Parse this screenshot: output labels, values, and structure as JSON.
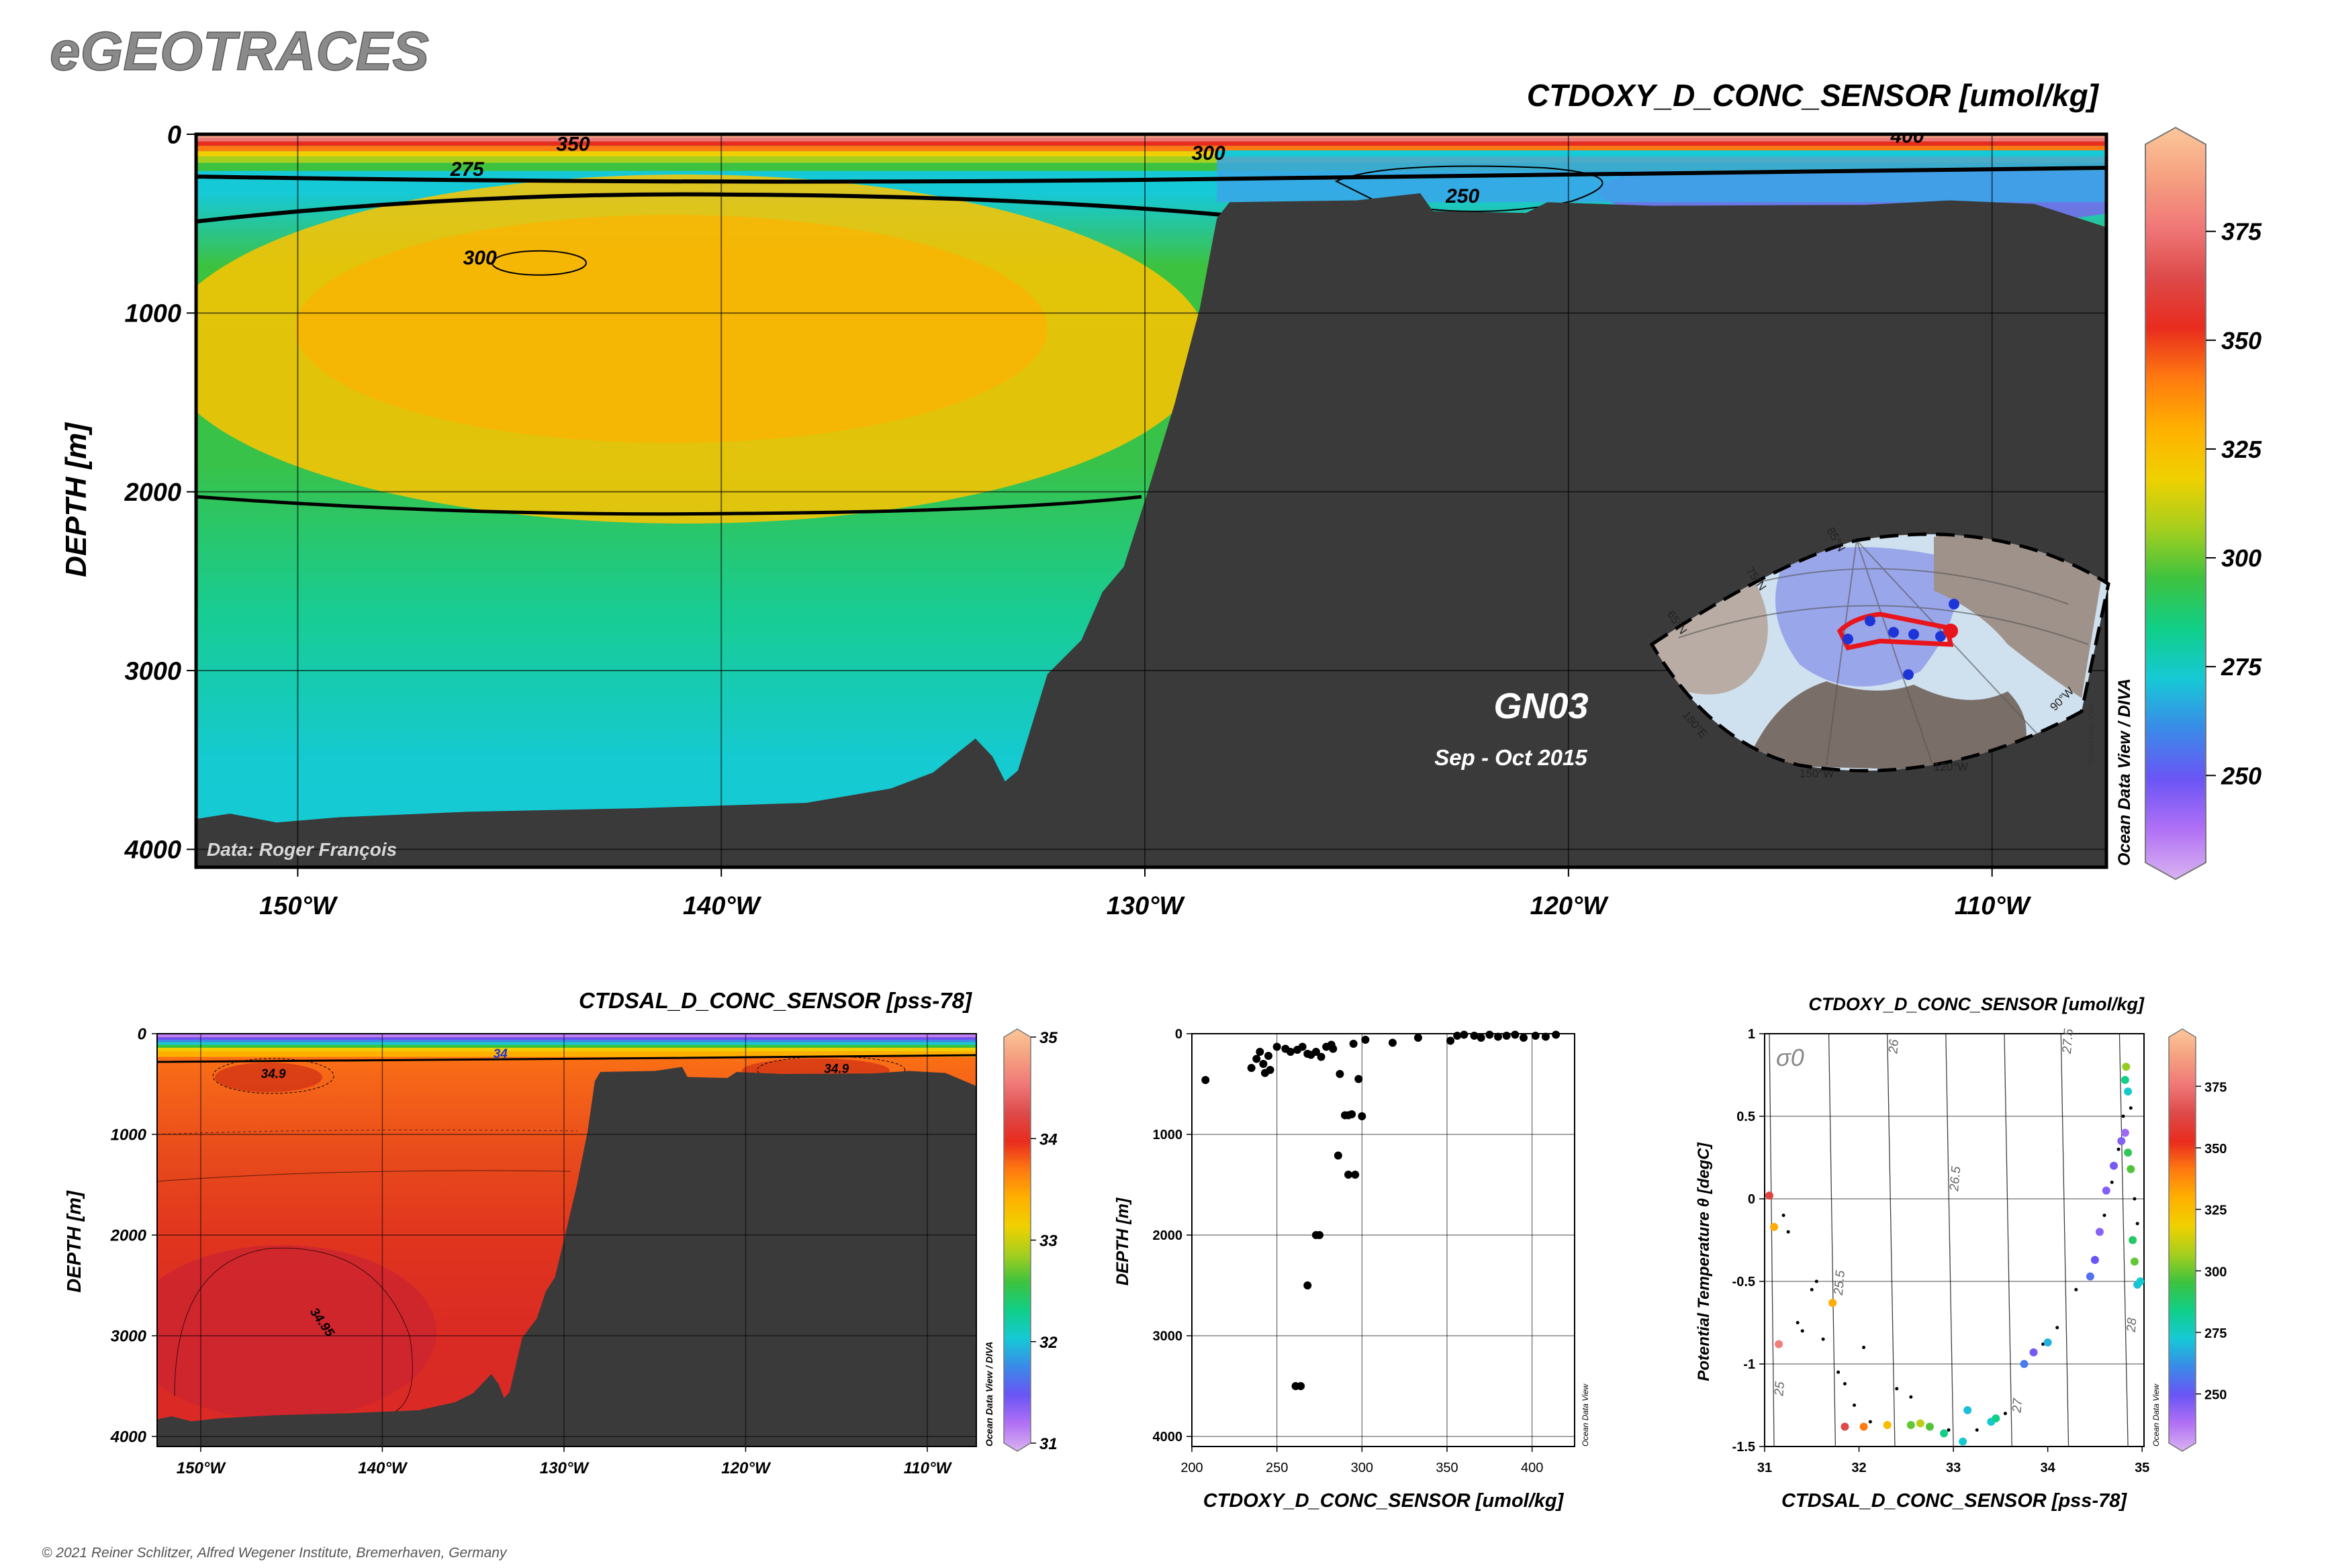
{
  "brand": "eGEOTRACES",
  "copyright": "© 2021 Reiner Schlitzer, Alfred Wegener Institute, Bremerhaven, Germany",
  "colormaps": {
    "odv": [
      "#d9b3f0",
      "#b070f5",
      "#6a55f5",
      "#3a8ae8",
      "#16c9d6",
      "#10cf88",
      "#3dc23f",
      "#a6cf1e",
      "#f0d000",
      "#ffb000",
      "#ff7a10",
      "#e82c1e",
      "#dd4a4a",
      "#f07777",
      "#f5a080",
      "#fcc79a"
    ],
    "land": "#3a3a3a",
    "map_land": "#b8aca4",
    "map_sea": "#cfe0ee",
    "track": "#e8161c",
    "station": "#1d35d6"
  },
  "chart_data": [
    {
      "type": "heatmap",
      "name": "main-section",
      "title": "CTDOXY_D_CONC_SENSOR [umol/kg]",
      "ylabel": "DEPTH [m]",
      "xlim": [
        -152.4,
        -107.3
      ],
      "ylim": [
        0,
        4100
      ],
      "x_ticks": [
        -150,
        -140,
        -130,
        -120,
        -110
      ],
      "x_tick_labels": [
        "150°W",
        "140°W",
        "130°W",
        "120°W",
        "110°W"
      ],
      "y_ticks": [
        0,
        1000,
        2000,
        3000,
        4000
      ],
      "y_tick_labels": [
        "0",
        "1000",
        "2000",
        "3000",
        "4000"
      ],
      "colorbar": {
        "range": [
          230,
          395
        ],
        "ticks": [
          250,
          275,
          300,
          325,
          350,
          375
        ],
        "side_label": "Ocean Data View / DIVA"
      },
      "contours": [
        {
          "label": "350",
          "label_x": -143.5,
          "label_depth": 55
        },
        {
          "label": "275",
          "label_x": -146,
          "label_depth": 195
        },
        {
          "label": "300",
          "label_x": -128.5,
          "label_depth": 105
        },
        {
          "label": "250",
          "label_x": -122.5,
          "label_depth": 345
        },
        {
          "label": "400",
          "label_x": -112,
          "label_depth": 10
        },
        {
          "label": "300",
          "label_x": -145.7,
          "label_depth": 690
        }
      ],
      "bathymetry_depth": [
        [
          -152.4,
          3830
        ],
        [
          -151.6,
          3800
        ],
        [
          -150.5,
          3850
        ],
        [
          -149,
          3820
        ],
        [
          -146,
          3790
        ],
        [
          -142,
          3770
        ],
        [
          -138,
          3740
        ],
        [
          -136,
          3660
        ],
        [
          -135,
          3570
        ],
        [
          -134,
          3380
        ],
        [
          -133.6,
          3480
        ],
        [
          -133.3,
          3620
        ],
        [
          -133,
          3560
        ],
        [
          -132.3,
          3020
        ],
        [
          -131.5,
          2830
        ],
        [
          -131,
          2560
        ],
        [
          -130.5,
          2420
        ],
        [
          -130,
          2050
        ],
        [
          -129.3,
          1510
        ],
        [
          -128.7,
          970
        ],
        [
          -128.3,
          470
        ],
        [
          -128,
          380
        ],
        [
          -125,
          370
        ],
        [
          -123.5,
          330
        ],
        [
          -123.2,
          430
        ],
        [
          -121,
          440
        ],
        [
          -120.5,
          380
        ],
        [
          -118,
          400
        ],
        [
          -113,
          395
        ],
        [
          -111,
          370
        ],
        [
          -109,
          390
        ],
        [
          -107.3,
          520
        ]
      ],
      "data_credit": "Data: Roger François",
      "section_name": "GN03",
      "section_dates": "Sep - Oct 2015",
      "inset_map": {
        "lat_labels": [
          "85°N",
          "75°N",
          "65°N"
        ],
        "lon_labels": [
          "180°E",
          "150°W",
          "120°W",
          "90°W"
        ],
        "credit": "Ocean Data View"
      }
    },
    {
      "type": "heatmap",
      "name": "salinity-section",
      "title": "CTDSAL_D_CONC_SENSOR [pss-78]",
      "ylabel": "DEPTH [m]",
      "xlim": [
        -152.4,
        -107.3
      ],
      "ylim": [
        0,
        4100
      ],
      "x_ticks": [
        -150,
        -140,
        -130,
        -120,
        -110
      ],
      "x_tick_labels": [
        "150°W",
        "140°W",
        "130°W",
        "120°W",
        "110°W"
      ],
      "y_ticks": [
        0,
        1000,
        2000,
        3000,
        4000
      ],
      "y_tick_labels": [
        "0",
        "1000",
        "2000",
        "3000",
        "4000"
      ],
      "colorbar": {
        "range": [
          31,
          35
        ],
        "ticks": [
          31,
          32,
          33,
          34,
          35
        ],
        "side_label": "Ocean Data View / DIVA"
      },
      "contours": [
        {
          "label": "34",
          "label_x": -133.5,
          "label_depth": 200
        },
        {
          "label": "34.9",
          "label_x": -146,
          "label_depth": 400
        },
        {
          "label": "34.9",
          "label_x": -115,
          "label_depth": 350
        },
        {
          "label": "34.95",
          "label_x": -143.5,
          "label_depth": 2850
        }
      ]
    },
    {
      "type": "scatter",
      "name": "oxygen-profile",
      "xlabel": "CTDOXY_D_CONC_SENSOR [umol/kg]",
      "ylabel": "DEPTH [m]",
      "xlim": [
        200,
        425
      ],
      "ylim": [
        0,
        4100
      ],
      "x_ticks": [
        200,
        250,
        300,
        350,
        400
      ],
      "x_tick_labels": [
        "200",
        "250",
        "300",
        "350",
        "400"
      ],
      "y_ticks": [
        0,
        1000,
        2000,
        3000,
        4000
      ],
      "y_tick_labels": [
        "0",
        "1000",
        "2000",
        "3000",
        "4000"
      ],
      "side_label": "Ocean Data View",
      "points": [
        [
          208,
          460
        ],
        [
          235,
          340
        ],
        [
          238,
          250
        ],
        [
          240,
          180
        ],
        [
          242,
          300
        ],
        [
          243,
          390
        ],
        [
          245,
          220
        ],
        [
          246,
          360
        ],
        [
          250,
          130
        ],
        [
          255,
          150
        ],
        [
          258,
          180
        ],
        [
          262,
          160
        ],
        [
          265,
          130
        ],
        [
          268,
          200
        ],
        [
          270,
          210
        ],
        [
          273,
          180
        ],
        [
          276,
          230
        ],
        [
          279,
          130
        ],
        [
          283,
          150
        ],
        [
          287,
          400
        ],
        [
          290,
          810
        ],
        [
          292,
          810
        ],
        [
          294,
          800
        ],
        [
          298,
          450
        ],
        [
          300,
          820
        ],
        [
          292,
          1400
        ],
        [
          286,
          1210
        ],
        [
          296,
          1400
        ],
        [
          273,
          2000
        ],
        [
          275,
          2000
        ],
        [
          268,
          2500
        ],
        [
          261,
          3500
        ],
        [
          264,
          3500
        ],
        [
          282,
          110
        ],
        [
          295,
          100
        ],
        [
          302,
          60
        ],
        [
          318,
          90
        ],
        [
          333,
          40
        ],
        [
          352,
          70
        ],
        [
          356,
          20
        ],
        [
          360,
          10
        ],
        [
          366,
          20
        ],
        [
          370,
          40
        ],
        [
          375,
          10
        ],
        [
          380,
          30
        ],
        [
          385,
          20
        ],
        [
          390,
          10
        ],
        [
          395,
          40
        ],
        [
          402,
          20
        ],
        [
          408,
          30
        ],
        [
          414,
          10
        ]
      ]
    },
    {
      "type": "scatter",
      "name": "ts-diagram",
      "title": "CTDOXY_D_CONC_SENSOR [umol/kg]",
      "xlabel": "CTDSAL_D_CONC_SENSOR [pss-78]",
      "ylabel": "Potential Temperature θ [degC]",
      "xlim": [
        31,
        35.02
      ],
      "ylim": [
        -1.5,
        1
      ],
      "x_ticks": [
        31,
        32,
        33,
        34,
        35
      ],
      "x_tick_labels": [
        "31",
        "32",
        "33",
        "34",
        "35"
      ],
      "y_ticks": [
        1,
        0.5,
        0,
        -0.5,
        -1,
        -1.5
      ],
      "y_tick_labels": [
        "1",
        "0.5",
        "0",
        "-0.5",
        "-1",
        "-1.5"
      ],
      "isopycnal_symbol": "σ0",
      "isopycnals": [
        {
          "label": "25",
          "s_bottom": 31.1,
          "s_top": 31.05
        },
        {
          "label": "25.5",
          "s_bottom": 31.75,
          "s_top": 31.68
        },
        {
          "label": "26",
          "s_bottom": 32.38,
          "s_top": 32.3
        },
        {
          "label": "26.5",
          "s_bottom": 33.0,
          "s_top": 32.92
        },
        {
          "label": "27",
          "s_bottom": 33.62,
          "s_top": 33.54
        },
        {
          "label": "27.5",
          "s_bottom": 34.22,
          "s_top": 34.14
        },
        {
          "label": "28",
          "s_bottom": 34.85,
          "s_top": 34.76
        }
      ],
      "colorbar": {
        "range": [
          230,
          395
        ],
        "ticks": [
          250,
          275,
          300,
          325,
          350,
          375
        ],
        "side_label": "Ocean Data View"
      },
      "points": [
        {
          "s": 31.05,
          "t": 0.02,
          "o": 360
        },
        {
          "s": 31.1,
          "t": -0.17,
          "o": 330
        },
        {
          "s": 31.15,
          "t": -0.88,
          "o": 375
        },
        {
          "s": 31.72,
          "t": -0.63,
          "o": 330
        },
        {
          "s": 31.85,
          "t": -1.38,
          "o": 362
        },
        {
          "s": 32.05,
          "t": -1.38,
          "o": 340
        },
        {
          "s": 32.3,
          "t": -1.37,
          "o": 325
        },
        {
          "s": 32.55,
          "t": -1.37,
          "o": 300
        },
        {
          "s": 32.65,
          "t": -1.36,
          "o": 310
        },
        {
          "s": 32.75,
          "t": -1.38,
          "o": 298
        },
        {
          "s": 32.9,
          "t": -1.42,
          "o": 285
        },
        {
          "s": 33.1,
          "t": -1.47,
          "o": 275
        },
        {
          "s": 33.15,
          "t": -1.28,
          "o": 272
        },
        {
          "s": 33.4,
          "t": -1.35,
          "o": 275
        },
        {
          "s": 33.45,
          "t": -1.33,
          "o": 285
        },
        {
          "s": 33.75,
          "t": -1.0,
          "o": 260
        },
        {
          "s": 33.85,
          "t": -0.93,
          "o": 250
        },
        {
          "s": 34.0,
          "t": -0.87,
          "o": 270
        },
        {
          "s": 34.45,
          "t": -0.47,
          "o": 258
        },
        {
          "s": 34.5,
          "t": -0.37,
          "o": 252
        },
        {
          "s": 34.55,
          "t": -0.2,
          "o": 247
        },
        {
          "s": 34.62,
          "t": 0.05,
          "o": 248
        },
        {
          "s": 34.7,
          "t": 0.2,
          "o": 250
        },
        {
          "s": 34.78,
          "t": 0.35,
          "o": 248
        },
        {
          "s": 34.82,
          "t": 0.4,
          "o": 244
        },
        {
          "s": 34.85,
          "t": 0.28,
          "o": 292
        },
        {
          "s": 34.88,
          "t": 0.18,
          "o": 298
        },
        {
          "s": 34.85,
          "t": 0.65,
          "o": 275
        },
        {
          "s": 34.82,
          "t": 0.72,
          "o": 285
        },
        {
          "s": 34.83,
          "t": 0.8,
          "o": 305
        },
        {
          "s": 34.9,
          "t": -0.25,
          "o": 290
        },
        {
          "s": 34.92,
          "t": -0.38,
          "o": 300
        },
        {
          "s": 34.95,
          "t": -0.52,
          "o": 272
        },
        {
          "s": 34.98,
          "t": -0.5,
          "o": 275
        }
      ],
      "small_points": [
        {
          "s": 31.2,
          "t": -0.1
        },
        {
          "s": 31.25,
          "t": -0.2
        },
        {
          "s": 31.35,
          "t": -0.75
        },
        {
          "s": 31.4,
          "t": -0.8
        },
        {
          "s": 31.5,
          "t": -0.55
        },
        {
          "s": 31.55,
          "t": -0.5
        },
        {
          "s": 31.62,
          "t": -0.85
        },
        {
          "s": 31.78,
          "t": -1.05
        },
        {
          "s": 31.85,
          "t": -1.12
        },
        {
          "s": 31.95,
          "t": -1.25
        },
        {
          "s": 32.05,
          "t": -0.9
        },
        {
          "s": 32.12,
          "t": -1.35
        },
        {
          "s": 32.4,
          "t": -1.15
        },
        {
          "s": 32.55,
          "t": -1.2
        },
        {
          "s": 32.95,
          "t": -1.4
        },
        {
          "s": 33.25,
          "t": -1.4
        },
        {
          "s": 33.55,
          "t": -1.3
        },
        {
          "s": 33.95,
          "t": -0.88
        },
        {
          "s": 34.1,
          "t": -0.78
        },
        {
          "s": 34.3,
          "t": -0.55
        },
        {
          "s": 34.6,
          "t": -0.1
        },
        {
          "s": 34.68,
          "t": 0.1
        },
        {
          "s": 34.75,
          "t": 0.3
        },
        {
          "s": 34.8,
          "t": 0.5
        },
        {
          "s": 34.88,
          "t": 0.55
        },
        {
          "s": 34.92,
          "t": 0.0
        },
        {
          "s": 34.95,
          "t": -0.15
        }
      ]
    }
  ]
}
